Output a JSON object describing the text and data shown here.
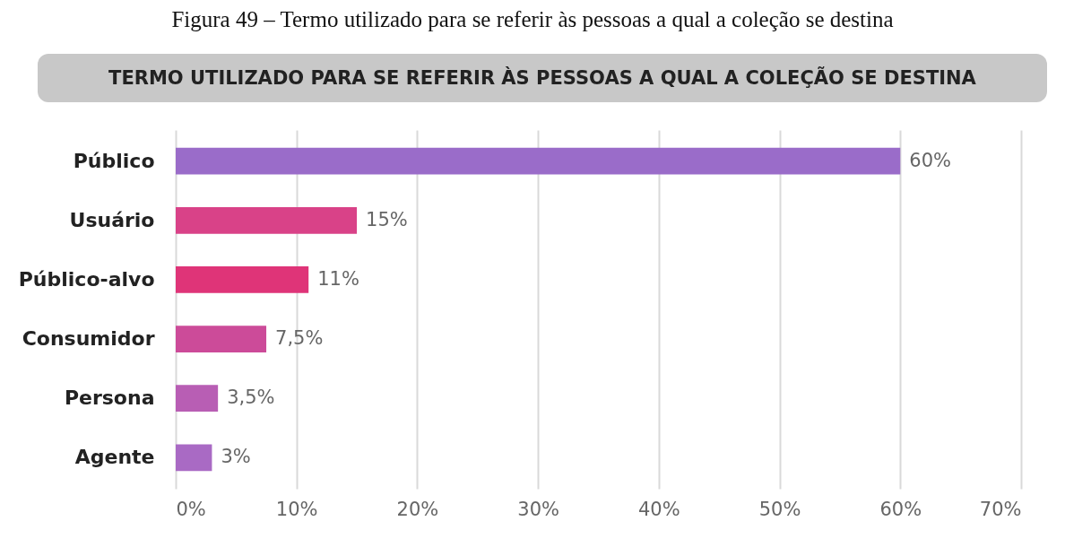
{
  "chart_data": {
    "type": "bar",
    "orientation": "horizontal",
    "title": "Figura 49 – Termo utilizado para se referir às pessoas a qual a coleção se destina",
    "subtitle": "TERMO UTILIZADO PARA SE REFERIR ÀS PESSOAS A QUAL A COLEÇÃO SE DESTINA",
    "categories": [
      "Público",
      "Usuário",
      "Público-alvo",
      "Consumidor",
      "Persona",
      "Agente"
    ],
    "values": [
      60,
      15,
      11,
      7.5,
      3.5,
      3
    ],
    "value_labels": [
      "60%",
      "15%",
      "11%",
      "7,5%",
      "3,5%",
      "3%"
    ],
    "colors": [
      "#9a6cc9",
      "#d94288",
      "#df3478",
      "#cc4b99",
      "#b85eb4",
      "#a96ac4"
    ],
    "xlim": [
      0,
      70
    ],
    "xticks": [
      {
        "value": 0,
        "label": "0%"
      },
      {
        "value": 10,
        "label": "10%"
      },
      {
        "value": 20,
        "label": "20%"
      },
      {
        "value": 30,
        "label": "30%"
      },
      {
        "value": 40,
        "label": "40%"
      },
      {
        "value": 50,
        "label": "50%"
      },
      {
        "value": 60,
        "label": "60%"
      },
      {
        "value": 70,
        "label": "70%"
      }
    ],
    "grid": "x"
  }
}
